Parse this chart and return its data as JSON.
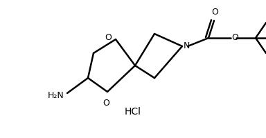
{
  "background": "#ffffff",
  "line_color": "#000000",
  "line_width": 1.8,
  "font_size_label": 9,
  "font_size_hcl": 10,
  "hcl_text": "HCl",
  "o_label": "O",
  "n_label": "N",
  "o2_label": "O",
  "nh2_label": "H₂N"
}
